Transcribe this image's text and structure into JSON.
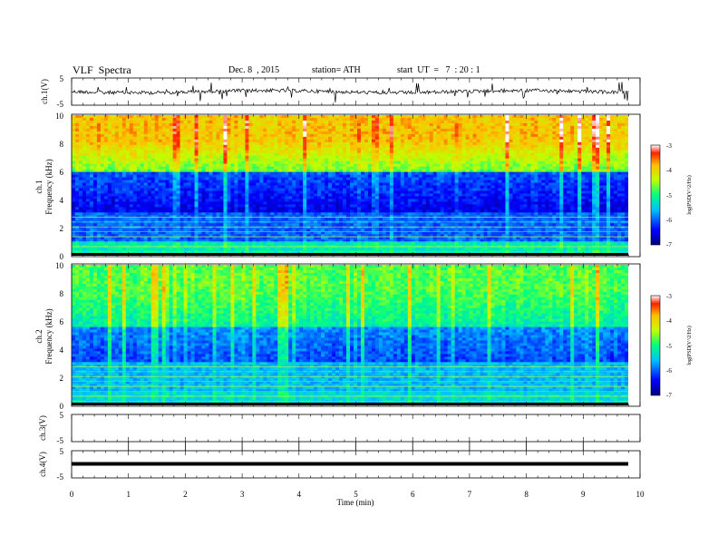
{
  "header": {
    "title": "VLF  Spectra",
    "date": "Dec. 8  , 2015",
    "station": "station= ATH",
    "start": "start  UT  =   7  : 20 : 1"
  },
  "chart_data": [
    {
      "type": "line",
      "panel": "ch.1 waveform",
      "ylabel": "ch.1(V)",
      "yticks": [
        "5",
        "-5"
      ],
      "ylim": [
        -5,
        5
      ],
      "x_range_min": [
        0,
        9.8
      ],
      "description_values": "noisy trace near 0 V with spikes"
    },
    {
      "type": "heatmap",
      "panel": "ch.1 spectrogram",
      "ylabel_lines": [
        "ch.1",
        "Frequency  (kHz)"
      ],
      "yticks": [
        "0",
        "2",
        "4",
        "6",
        "8",
        "10"
      ],
      "ylim_khz": [
        0,
        10
      ],
      "colorbar": {
        "label": "log(PSD(V^2/Hz)",
        "ticks": [
          "-3",
          "-4",
          "-5",
          "-6",
          "-7"
        ],
        "range": [
          -7,
          -3
        ]
      }
    },
    {
      "type": "heatmap",
      "panel": "ch.2 spectrogram",
      "ylabel_lines": [
        "ch.2",
        "Frequency  (kHz)"
      ],
      "yticks": [
        "0",
        "2",
        "4",
        "6",
        "8",
        "10"
      ],
      "ylim_khz": [
        0,
        10
      ],
      "colorbar": {
        "label": "log(PSD(V^2/Hz)",
        "ticks": [
          "-3",
          "-4",
          "-5",
          "-6",
          "-7"
        ],
        "range": [
          -7,
          -3
        ]
      }
    },
    {
      "type": "line",
      "panel": "ch.3 waveform",
      "ylabel": "ch.3(V)",
      "yticks": [
        "5",
        "-5"
      ],
      "ylim": [
        -5,
        5
      ]
    },
    {
      "type": "line",
      "panel": "ch.4 waveform",
      "ylabel": "ch.4(V)",
      "yticks": [
        "5",
        "-5"
      ],
      "ylim": [
        -5,
        5
      ]
    }
  ],
  "xaxis": {
    "label": "Time  (min)",
    "ticks": [
      "0",
      "1",
      "2",
      "3",
      "4",
      "5",
      "6",
      "7",
      "8",
      "9",
      "10"
    ],
    "xlim": [
      0,
      10
    ]
  }
}
